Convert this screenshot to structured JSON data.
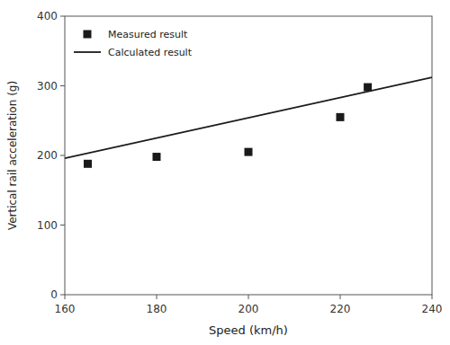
{
  "chart_data": {
    "type": "line",
    "x_label": "Speed  (km/h)",
    "y_label": "Vertical rail acceleration (g)",
    "xlim": [
      160,
      240
    ],
    "ylim": [
      0,
      400
    ],
    "xticks": [
      160,
      180,
      200,
      220,
      240
    ],
    "yticks": [
      0,
      100,
      200,
      300,
      400
    ],
    "grid": false,
    "legend": "upper left",
    "series": [
      {
        "name": "Measured result",
        "type": "scatter",
        "marker": "square",
        "color": "#1a1a1a",
        "x": [
          165,
          180,
          200,
          220,
          226
        ],
        "values": [
          188,
          198,
          205,
          255,
          298
        ]
      },
      {
        "name": "Calculated result",
        "type": "line",
        "line_style": "solid",
        "color": "#1a1a1a",
        "x": [
          160,
          240
        ],
        "values": [
          196,
          312
        ]
      }
    ]
  }
}
